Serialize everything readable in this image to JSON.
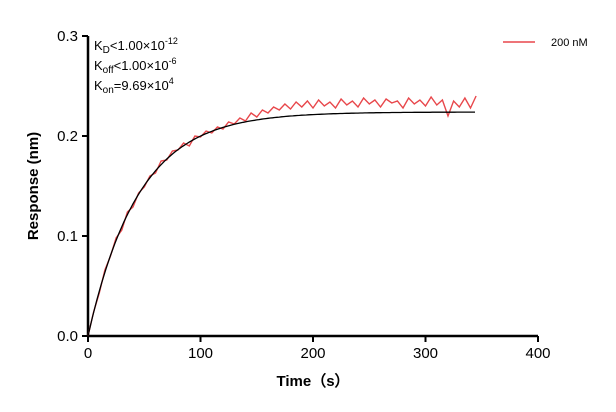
{
  "chart_data": {
    "type": "line",
    "xlabel": "Time（s）",
    "ylabel": "Response (nm)",
    "xlim": [
      0,
      400
    ],
    "ylim": [
      0,
      0.3
    ],
    "xticks": [
      "0",
      "100",
      "200",
      "300",
      "400"
    ],
    "yticks": [
      "0.0",
      "0.1",
      "0.2",
      "0.3"
    ],
    "grid": false,
    "legend_position": "top-right",
    "annotations": [
      {
        "main": "K",
        "sub": "D",
        "rest": "<1.00×10",
        "sup": "-12"
      },
      {
        "main": "K",
        "sub": "off",
        "rest": "<1.00×10",
        "sup": "-6"
      },
      {
        "main": "K",
        "sub": "on",
        "rest": "=9.69×10",
        "sup": "4"
      }
    ],
    "series": [
      {
        "name": "200 nM",
        "color": "#e8474b",
        "x": [
          0,
          5,
          10,
          15,
          20,
          25,
          30,
          35,
          40,
          45,
          50,
          55,
          60,
          65,
          70,
          75,
          80,
          85,
          90,
          95,
          100,
          105,
          110,
          115,
          120,
          125,
          130,
          135,
          140,
          145,
          150,
          155,
          160,
          165,
          170,
          175,
          180,
          185,
          190,
          195,
          200,
          205,
          210,
          215,
          220,
          225,
          230,
          235,
          240,
          245,
          250,
          255,
          260,
          265,
          270,
          275,
          280,
          285,
          290,
          295,
          300,
          305,
          310,
          315,
          320,
          325,
          330,
          335,
          340,
          345
        ],
        "y": [
          0,
          0.024,
          0.043,
          0.066,
          0.08,
          0.098,
          0.106,
          0.124,
          0.129,
          0.143,
          0.149,
          0.16,
          0.163,
          0.175,
          0.176,
          0.185,
          0.186,
          0.193,
          0.19,
          0.2,
          0.199,
          0.205,
          0.203,
          0.209,
          0.207,
          0.214,
          0.212,
          0.218,
          0.215,
          0.223,
          0.219,
          0.226,
          0.223,
          0.229,
          0.226,
          0.232,
          0.227,
          0.234,
          0.229,
          0.235,
          0.228,
          0.236,
          0.23,
          0.234,
          0.228,
          0.237,
          0.231,
          0.235,
          0.229,
          0.238,
          0.232,
          0.236,
          0.229,
          0.237,
          0.233,
          0.235,
          0.228,
          0.238,
          0.232,
          0.236,
          0.23,
          0.239,
          0.231,
          0.236,
          0.22,
          0.235,
          0.229,
          0.238,
          0.228,
          0.24
        ]
      }
    ],
    "fit": {
      "color": "#000000",
      "model": "1:1 association",
      "plateau": 0.224,
      "kobs": 0.0223,
      "x_end": 345
    }
  }
}
